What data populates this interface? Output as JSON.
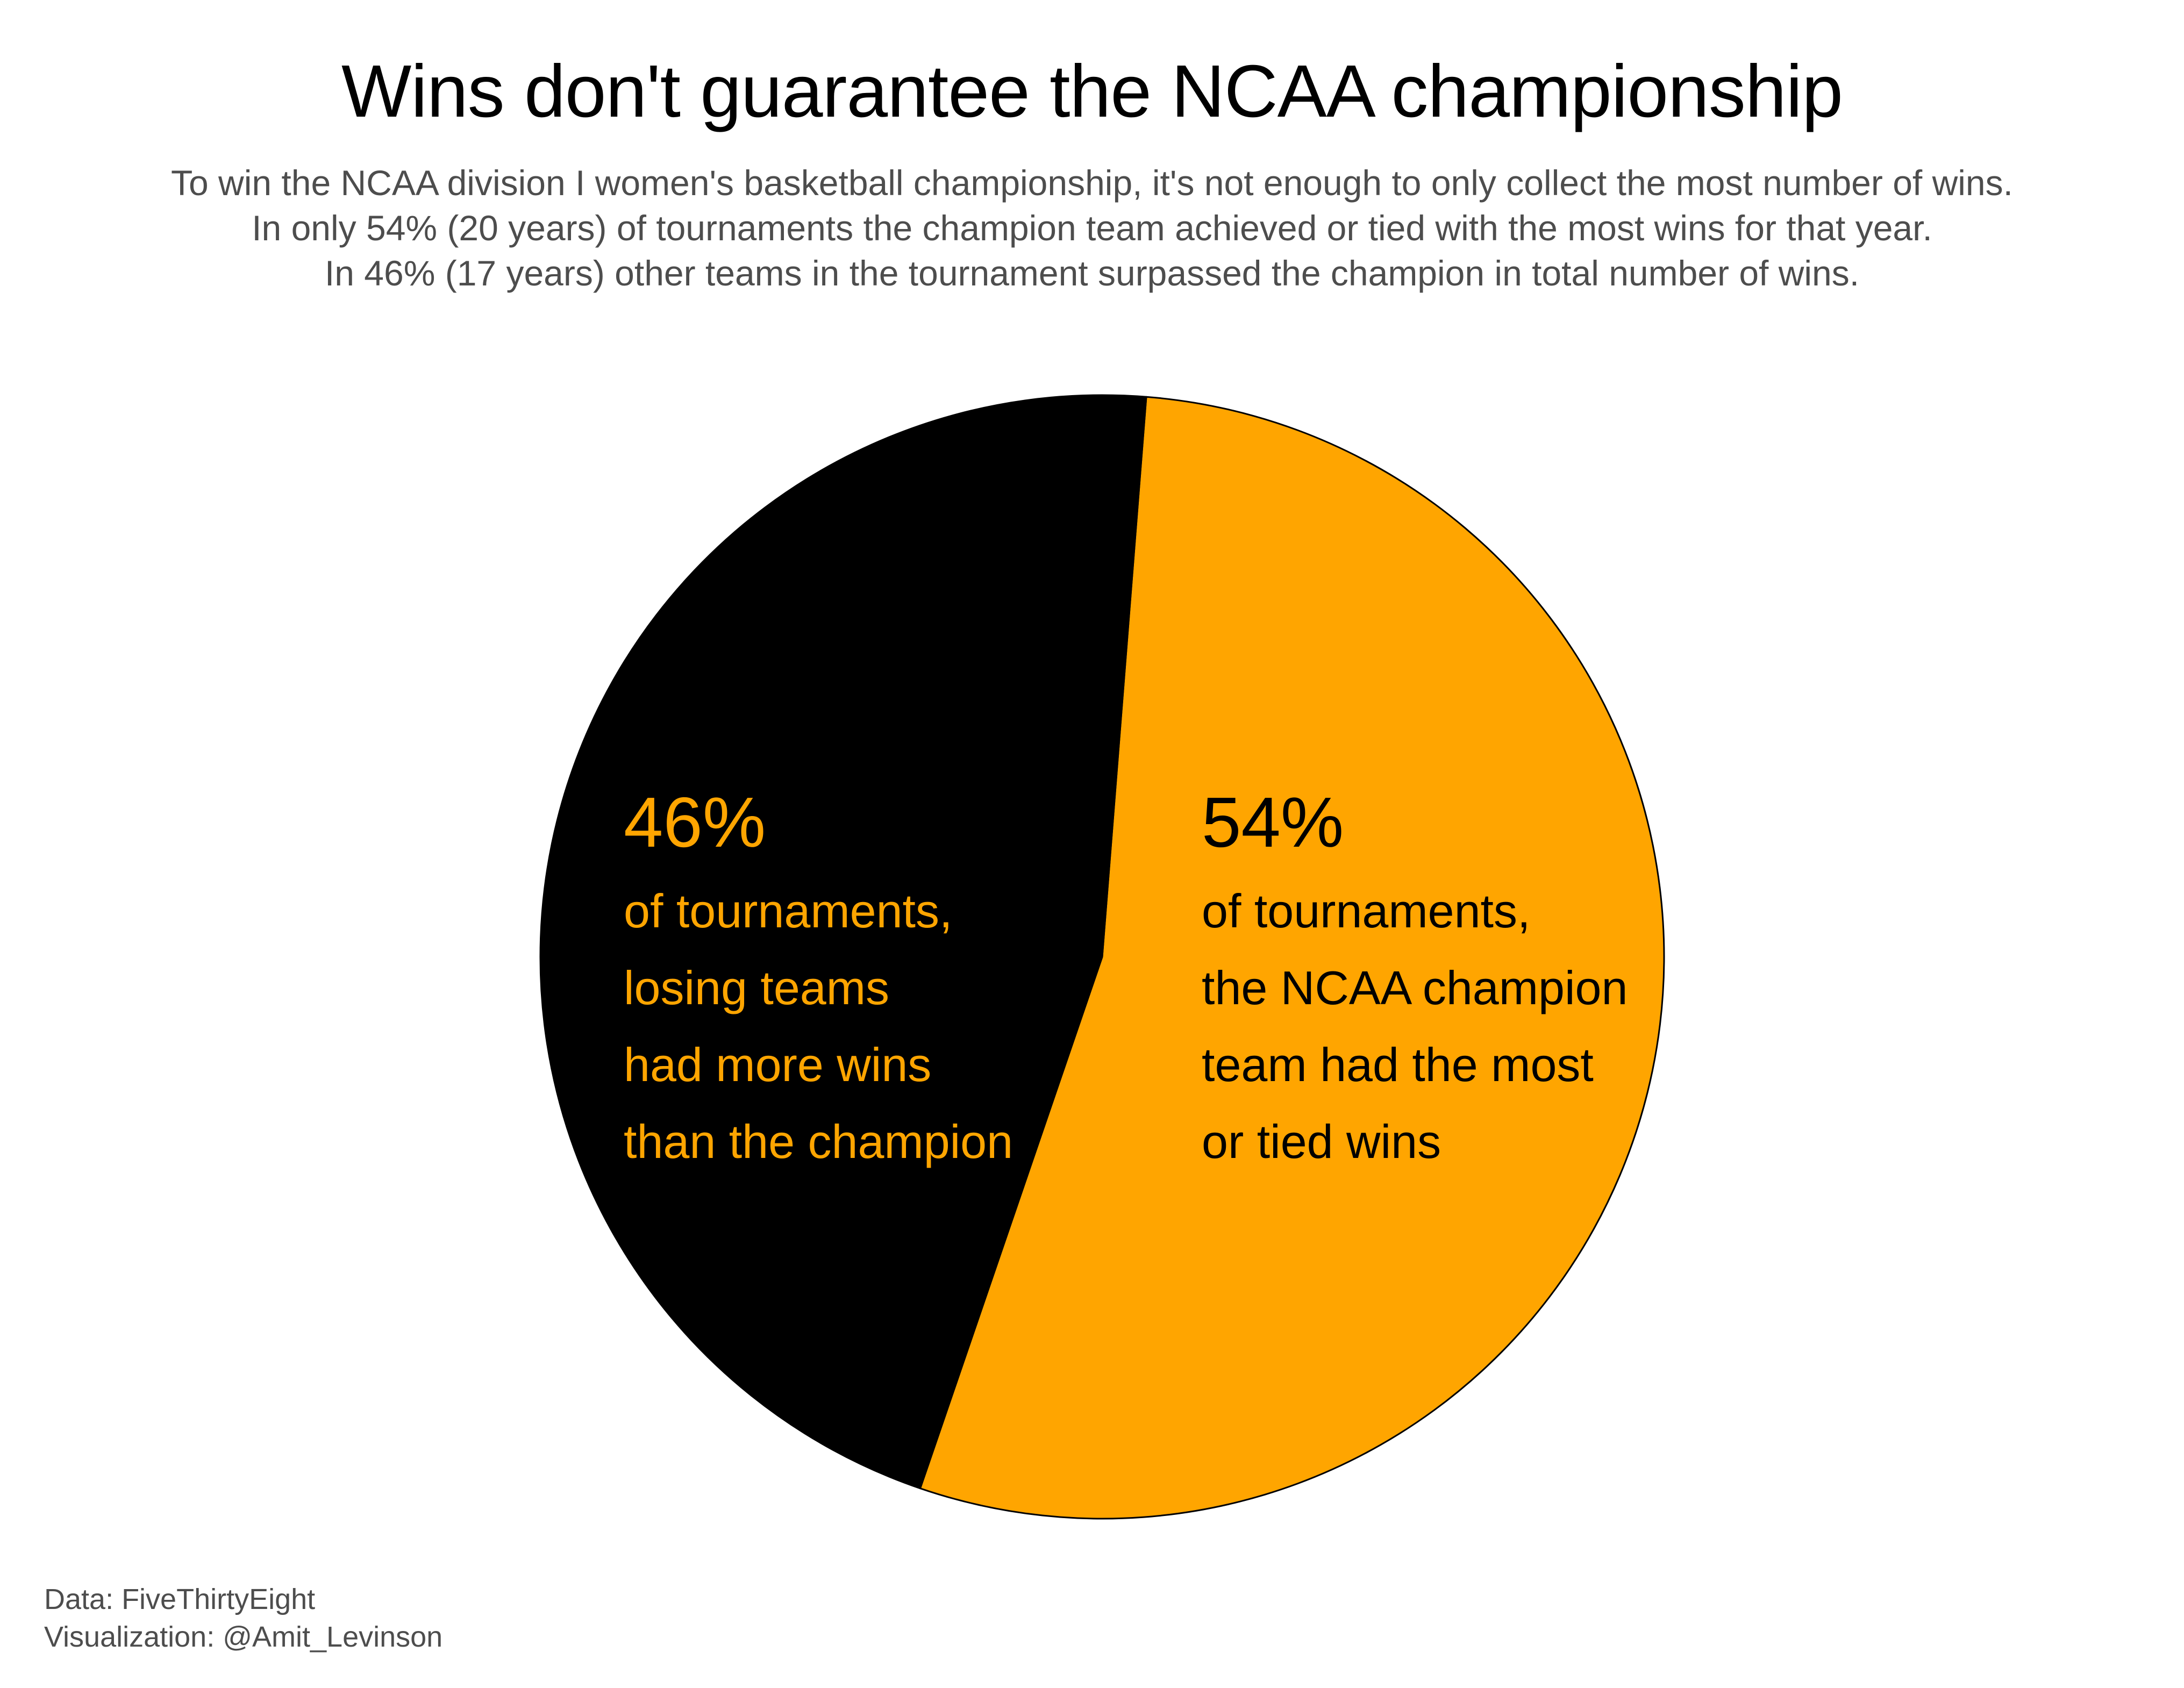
{
  "title": "Wins don't guarantee the NCAA championship",
  "subtitle": [
    "To win the NCAA division I women's basketball championship, it's not enough to only collect the most number of wins.",
    "In only 54% (20 years) of tournaments the champion team achieved or tied with the most wins for that year.",
    "In 46% (17 years) other teams in the tournament surpassed the champion in total number of wins."
  ],
  "colors": {
    "accent": "#FFA500",
    "dark": "#000000",
    "muted": "#4D4D4D"
  },
  "chart_data": {
    "type": "pie",
    "title": "Wins don't guarantee the NCAA championship",
    "slices": [
      {
        "name": "champion-most-wins",
        "value": 54,
        "years": 20,
        "percent_label": "54%",
        "description": [
          "of tournaments,",
          "the NCAA champion",
          "team had the most",
          "or tied wins"
        ],
        "fill": "#FFA500",
        "text_color": "#000000"
      },
      {
        "name": "others-more-wins",
        "value": 46,
        "years": 17,
        "percent_label": "46%",
        "description": [
          "of tournaments,",
          "losing teams",
          "had more wins",
          "than the champion"
        ],
        "fill": "#000000",
        "text_color": "#FFA500"
      }
    ]
  },
  "caption": {
    "data_source": "Data: FiveThirtyEight",
    "visualization": "Visualization: @Amit_Levinson"
  }
}
